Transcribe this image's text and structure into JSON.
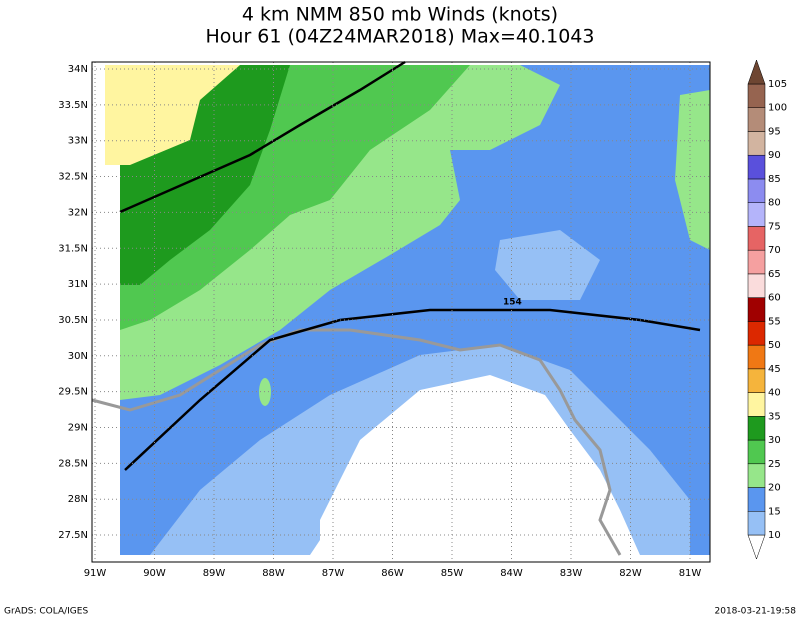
{
  "header": {
    "title": "4 km NMM 850 mb Winds (knots)",
    "subtitle": "Hour 61 (04Z24MAR2018) Max=40.1043"
  },
  "map": {
    "x_labels": [
      "91W",
      "90W",
      "89W",
      "88W",
      "87W",
      "86W",
      "85W",
      "84W",
      "83W",
      "82W",
      "81W"
    ],
    "y_labels": [
      "34N",
      "33.5N",
      "33N",
      "32.5N",
      "32N",
      "31.5N",
      "31N",
      "30.5N",
      "30N",
      "29.5N",
      "29N",
      "28.5N",
      "28N",
      "27.5N"
    ],
    "annotation": "154"
  },
  "colorbar": {
    "labels": [
      10,
      15,
      20,
      25,
      30,
      35,
      40,
      45,
      50,
      55,
      60,
      65,
      70,
      75,
      80,
      85,
      90,
      95,
      100,
      105
    ],
    "colors": [
      "#ffffff",
      "#96c0f5",
      "#5a96ef",
      "#96e68a",
      "#50c850",
      "#1e9a1e",
      "#fff5a0",
      "#f5b43c",
      "#f07814",
      "#dc2800",
      "#a00000",
      "#fadcdc",
      "#f5a0a0",
      "#e66464",
      "#b4b4fa",
      "#8c8cf0",
      "#5a50dc",
      "#d2b4a0",
      "#b48c78",
      "#966450",
      "#6e4632"
    ]
  },
  "footer": {
    "left": "GrADS: COLA/IGES",
    "right": "2018-03-21-19:58"
  }
}
